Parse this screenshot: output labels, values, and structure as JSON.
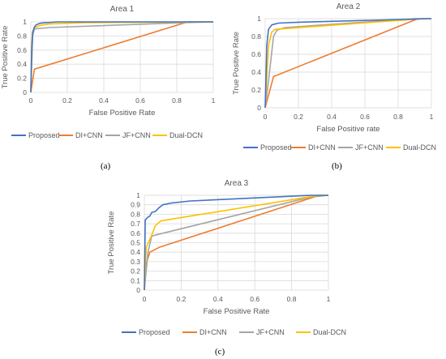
{
  "chart_data": [
    {
      "type": "line",
      "title": "Area 1",
      "xlabel": "False Positive Rate",
      "ylabel": "True Positive Rate",
      "xlim": [
        0,
        1
      ],
      "ylim": [
        0,
        1
      ],
      "x_ticks": [
        "0",
        "0.2",
        "0.4",
        "0.6",
        "0.8",
        "1"
      ],
      "y_ticks": [
        "0",
        "0.2",
        "0.4",
        "0.6",
        "0.8",
        "1"
      ],
      "grid": true,
      "legend_position": "bottom",
      "caption": "(a)",
      "series": [
        {
          "name": "Proposed",
          "color": "#4472C4",
          "points": [
            [
              0,
              0
            ],
            [
              0.005,
              0.6
            ],
            [
              0.01,
              0.85
            ],
            [
              0.02,
              0.93
            ],
            [
              0.03,
              0.96
            ],
            [
              0.05,
              0.98
            ],
            [
              0.08,
              0.99
            ],
            [
              0.15,
              1
            ],
            [
              1,
              1
            ]
          ]
        },
        {
          "name": "DI+CNN",
          "color": "#ED7D31",
          "points": [
            [
              0,
              0
            ],
            [
              0.02,
              0.33
            ],
            [
              0.86,
              1
            ],
            [
              1,
              1
            ]
          ]
        },
        {
          "name": "JF+CNN",
          "color": "#A5A5A5",
          "points": [
            [
              0,
              0
            ],
            [
              0.01,
              0.8
            ],
            [
              0.02,
              0.9
            ],
            [
              0.1,
              0.92
            ],
            [
              0.85,
              0.99
            ],
            [
              1,
              1
            ]
          ]
        },
        {
          "name": "Dual-DCN",
          "color": "#FFC000",
          "points": [
            [
              0,
              0
            ],
            [
              0.005,
              0.7
            ],
            [
              0.01,
              0.86
            ],
            [
              0.02,
              0.92
            ],
            [
              0.05,
              0.95
            ],
            [
              0.1,
              0.97
            ],
            [
              0.3,
              0.99
            ],
            [
              1,
              1
            ]
          ]
        }
      ]
    },
    {
      "type": "line",
      "title": "Area 2",
      "xlabel": "False Positive rate",
      "ylabel": "True Positive Rate",
      "xlim": [
        0,
        1
      ],
      "ylim": [
        0,
        1
      ],
      "x_ticks": [
        "0",
        "0.2",
        "0.4",
        "0.6",
        "0.8",
        "1"
      ],
      "y_ticks": [
        "0",
        "0.2",
        "0.4",
        "0.6",
        "0.8",
        "1"
      ],
      "grid": true,
      "legend_position": "bottom",
      "caption": "(b)",
      "series": [
        {
          "name": "Proposed",
          "color": "#4472C4",
          "points": [
            [
              0,
              0
            ],
            [
              0.01,
              0.7
            ],
            [
              0.02,
              0.88
            ],
            [
              0.04,
              0.93
            ],
            [
              0.08,
              0.95
            ],
            [
              0.2,
              0.96
            ],
            [
              1,
              1
            ]
          ]
        },
        {
          "name": "DI+CNN",
          "color": "#ED7D31",
          "points": [
            [
              0,
              0
            ],
            [
              0.05,
              0.35
            ],
            [
              0.92,
              1
            ],
            [
              1,
              1
            ]
          ]
        },
        {
          "name": "JF+CNN",
          "color": "#A5A5A5",
          "points": [
            [
              0,
              0
            ],
            [
              0.02,
              0.3
            ],
            [
              0.05,
              0.8
            ],
            [
              0.07,
              0.87
            ],
            [
              0.12,
              0.9
            ],
            [
              0.9,
              1
            ],
            [
              1,
              1
            ]
          ]
        },
        {
          "name": "Dual-DCN",
          "color": "#FFC000",
          "points": [
            [
              0,
              0
            ],
            [
              0.02,
              0.7
            ],
            [
              0.04,
              0.85
            ],
            [
              0.06,
              0.88
            ],
            [
              0.95,
              1
            ],
            [
              1,
              1
            ]
          ]
        }
      ]
    },
    {
      "type": "line",
      "title": "Area 3",
      "xlabel": "False Positive Rate",
      "ylabel": "True Positive Rate",
      "xlim": [
        0,
        1
      ],
      "ylim": [
        0,
        1
      ],
      "x_ticks": [
        "0",
        "0.2",
        "0.4",
        "0.6",
        "0.8",
        "1"
      ],
      "y_ticks": [
        "0",
        "0.1",
        "0.2",
        "0.3",
        "0.4",
        "0.5",
        "0.6",
        "0.7",
        "0.8",
        "0.9",
        "1"
      ],
      "grid": true,
      "legend_position": "bottom",
      "caption": "(c)",
      "series": [
        {
          "name": "Proposed",
          "color": "#4472C4",
          "points": [
            [
              0,
              0
            ],
            [
              0.005,
              0.74
            ],
            [
              0.02,
              0.77
            ],
            [
              0.03,
              0.78
            ],
            [
              0.04,
              0.82
            ],
            [
              0.06,
              0.83
            ],
            [
              0.08,
              0.87
            ],
            [
              0.1,
              0.9
            ],
            [
              0.15,
              0.92
            ],
            [
              0.25,
              0.94
            ],
            [
              0.9,
              1
            ],
            [
              1,
              1
            ]
          ]
        },
        {
          "name": "DI+CNN",
          "color": "#ED7D31",
          "points": [
            [
              0,
              0
            ],
            [
              0.01,
              0.28
            ],
            [
              0.03,
              0.4
            ],
            [
              0.08,
              0.45
            ],
            [
              0.95,
              1
            ],
            [
              1,
              1
            ]
          ]
        },
        {
          "name": "JF+CNN",
          "color": "#A5A5A5",
          "points": [
            [
              0,
              0
            ],
            [
              0.02,
              0.4
            ],
            [
              0.04,
              0.57
            ],
            [
              0.1,
              0.6
            ],
            [
              0.9,
              0.98
            ],
            [
              1,
              1
            ]
          ]
        },
        {
          "name": "Dual-DCN",
          "color": "#FFC000",
          "points": [
            [
              0,
              0
            ],
            [
              0.01,
              0.45
            ],
            [
              0.04,
              0.58
            ],
            [
              0.06,
              0.68
            ],
            [
              0.09,
              0.73
            ],
            [
              0.15,
              0.75
            ],
            [
              0.95,
              1
            ],
            [
              1,
              1
            ]
          ]
        }
      ]
    }
  ]
}
